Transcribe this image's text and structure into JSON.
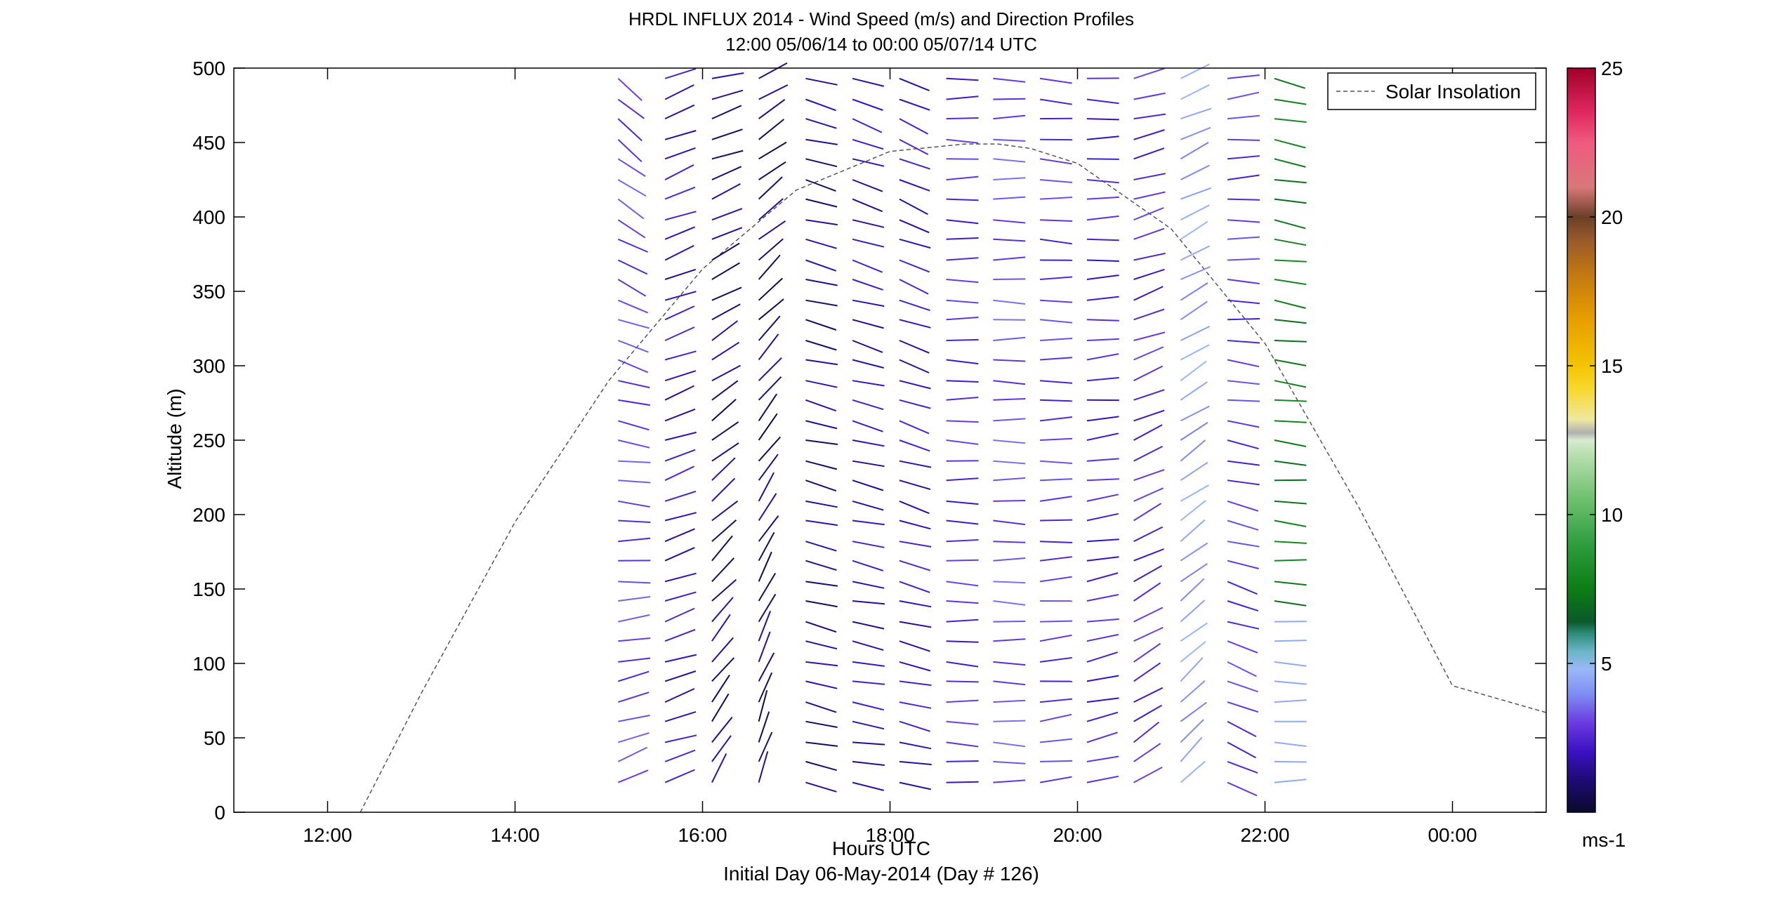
{
  "chart_data": {
    "type": "wind-barb-profile",
    "title": "HRDL INFLUX 2014 - Wind Speed (m/s) and Direction Profiles",
    "subtitle": "12:00 05/06/14 to 00:00 05/07/14  UTC",
    "xlabel": "Hours UTC",
    "xlabel2": "Initial Day 06-May-2014 (Day # 126)",
    "ylabel": "Altitude (m)",
    "xlim": [
      11.0,
      25.0
    ],
    "ylim": [
      0,
      500
    ],
    "x_tick_values": [
      12,
      14,
      16,
      18,
      20,
      22,
      24
    ],
    "x_tick_labels": [
      "12:00",
      "14:00",
      "16:00",
      "18:00",
      "20:00",
      "22:00",
      "00:00"
    ],
    "y_ticks": [
      0,
      50,
      100,
      150,
      200,
      250,
      300,
      350,
      400,
      450,
      500
    ],
    "legend": {
      "entries": [
        "Solar Insolation"
      ],
      "placement": "top-right"
    },
    "colorbar": {
      "label": "ms-1",
      "range": [
        0,
        25
      ],
      "ticks": [
        5,
        10,
        15,
        20,
        25
      ],
      "stops": [
        [
          0,
          "#0a0a2e"
        ],
        [
          1,
          "#1c0a6e"
        ],
        [
          2,
          "#3a10c0"
        ],
        [
          3,
          "#6b3ae0"
        ],
        [
          4,
          "#7f8ff2"
        ],
        [
          4.8,
          "#9ab8f8"
        ],
        [
          5.4,
          "#6bb6c8"
        ],
        [
          6,
          "#2e8c7a"
        ],
        [
          6.4,
          "#0a5a2a"
        ],
        [
          7.5,
          "#0c7d14"
        ],
        [
          9,
          "#2e9d3e"
        ],
        [
          10.5,
          "#6cc06c"
        ],
        [
          12,
          "#b8deb0"
        ],
        [
          12.5,
          "#d8ecd0"
        ],
        [
          12.75,
          "#b0b0b0"
        ],
        [
          13.2,
          "#f0e8a0"
        ],
        [
          14.2,
          "#f8d830"
        ],
        [
          15,
          "#f4c400"
        ],
        [
          16.5,
          "#e8a000"
        ],
        [
          18,
          "#c47a10"
        ],
        [
          19.2,
          "#9a5a2a"
        ],
        [
          20,
          "#6a4028"
        ],
        [
          21,
          "#d87878"
        ],
        [
          22.5,
          "#f05a80"
        ],
        [
          23.5,
          "#e02860"
        ],
        [
          25,
          "#a0002a"
        ]
      ]
    },
    "solar_insolation": {
      "x": [
        12.35,
        13.0,
        14.0,
        15.0,
        16.0,
        17.0,
        18.0,
        18.8,
        19.15,
        19.5,
        20.0,
        21.0,
        22.0,
        23.0,
        24.0,
        25.0
      ],
      "y": [
        0,
        80,
        195,
        290,
        365,
        418,
        444,
        449,
        449,
        446,
        436,
        392,
        315,
        205,
        85,
        67
      ]
    },
    "profile_times": [
      15.1,
      15.6,
      16.1,
      16.6,
      17.1,
      17.6,
      18.1,
      18.6,
      19.1,
      19.6,
      20.1,
      20.6,
      21.1,
      21.6,
      22.1
    ],
    "profile_altitudes": [
      20,
      34,
      47,
      61,
      74,
      88,
      101,
      115,
      128,
      142,
      155,
      169,
      182,
      196,
      209,
      223,
      236,
      250,
      263,
      277,
      290,
      304,
      317,
      331,
      344,
      358,
      371,
      385,
      398,
      412,
      425,
      439,
      452,
      466,
      479,
      493
    ]
  }
}
